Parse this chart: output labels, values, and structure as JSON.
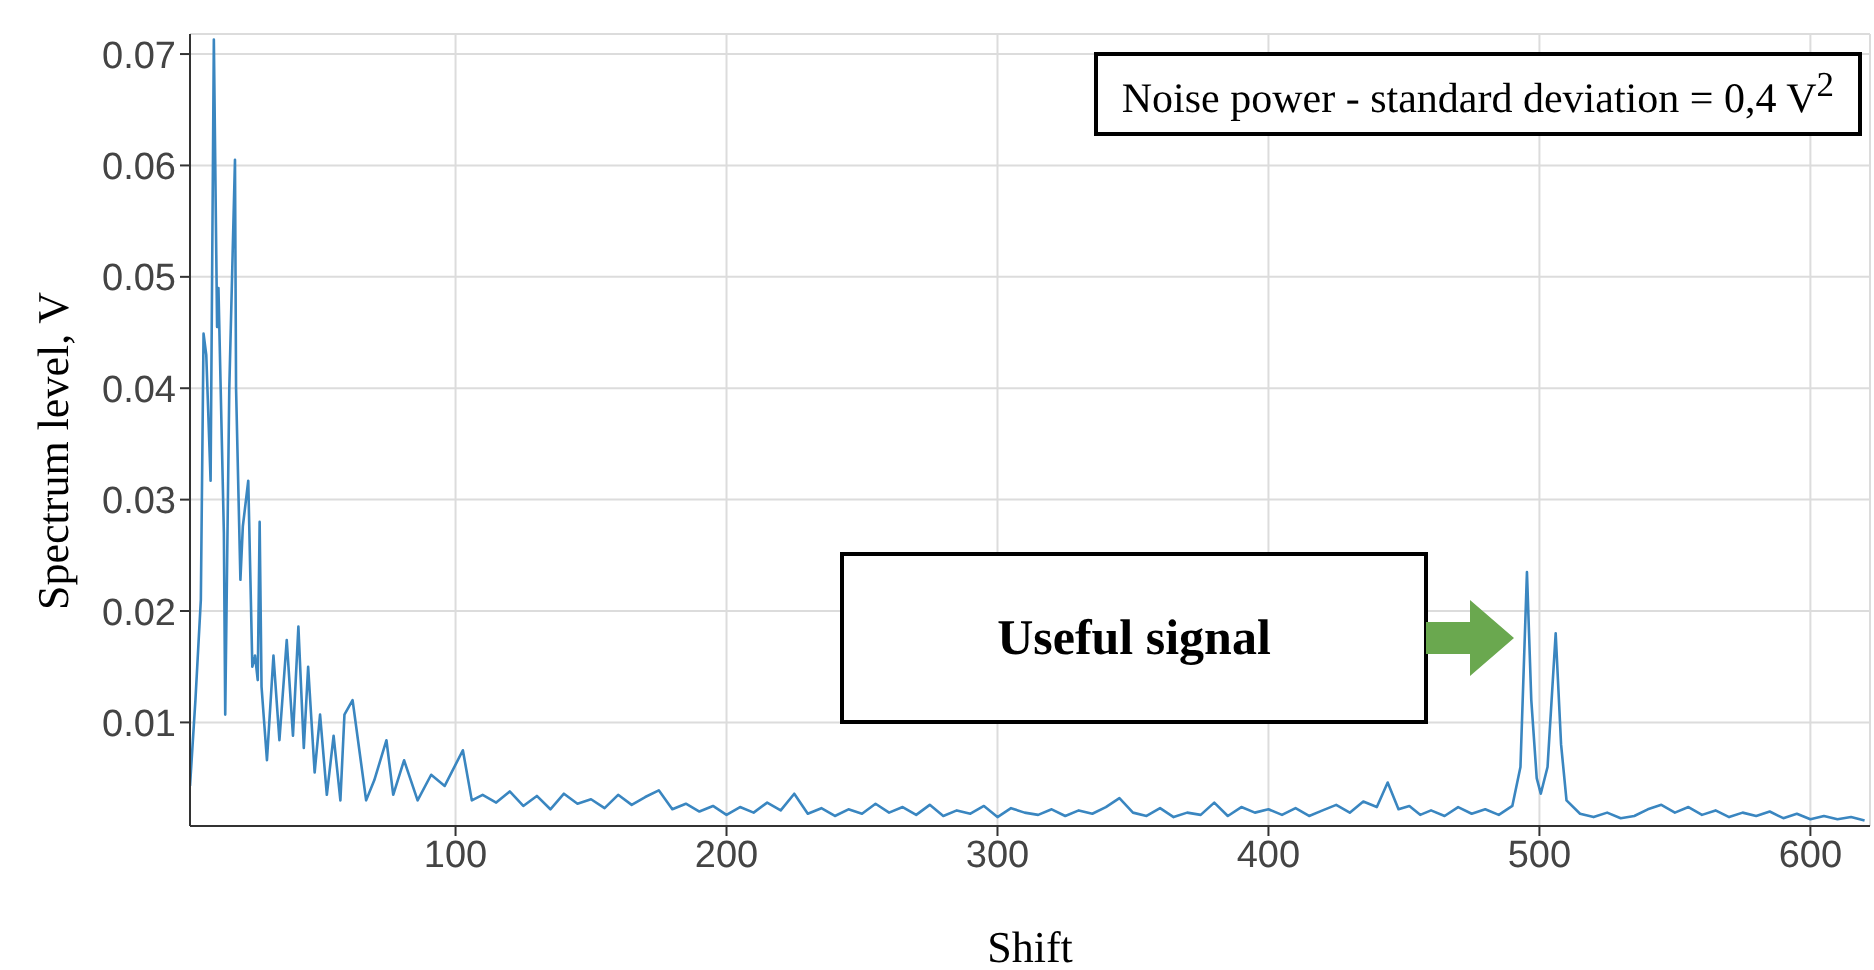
{
  "chart_data": {
    "type": "line",
    "xlabel": "Shift",
    "ylabel": "Spectrum level, V",
    "x": [
      2,
      4,
      6,
      7,
      8,
      9.6,
      10.8,
      12,
      12.5,
      14.5,
      15,
      16.5,
      18.6,
      19,
      20.6,
      21.5,
      23.5,
      25,
      26,
      27,
      27.7,
      28.4,
      30.4,
      32.8,
      35,
      37.7,
      40,
      42,
      44,
      45.6,
      48,
      50,
      52.5,
      55,
      57.5,
      59,
      62,
      65,
      67,
      70,
      74.5,
      77,
      81,
      86,
      91,
      96,
      102.7,
      106,
      110,
      115,
      120,
      125,
      130,
      135,
      140,
      145,
      150,
      155,
      160,
      165,
      170,
      175,
      180,
      185,
      190,
      195,
      200,
      205,
      210,
      215,
      220,
      225,
      230,
      235,
      240,
      245,
      250,
      255,
      260,
      265,
      270,
      275,
      280,
      285,
      290,
      295,
      300,
      305,
      310,
      315,
      320,
      325,
      330,
      335,
      340,
      345,
      350,
      355,
      360,
      365,
      370,
      375,
      380,
      385,
      390,
      395,
      400,
      405,
      410,
      415,
      420,
      425,
      430,
      435,
      440,
      444,
      448,
      452,
      456,
      460,
      465,
      470,
      475,
      480,
      485,
      490,
      493,
      495.4,
      497,
      499,
      500.5,
      503,
      506,
      508,
      510,
      515,
      520,
      525,
      530,
      535,
      540,
      545,
      550,
      555,
      560,
      565,
      570,
      575,
      580,
      585,
      590,
      595,
      600,
      605,
      610,
      615,
      620
    ],
    "series": [
      {
        "color": "#3a86c0",
        "values": [
          0.0043,
          0.012,
          0.021,
          0.0449,
          0.043,
          0.0317,
          0.0713,
          0.0455,
          0.049,
          0.027,
          0.0107,
          0.04,
          0.0605,
          0.04,
          0.0228,
          0.0276,
          0.0317,
          0.015,
          0.016,
          0.0138,
          0.028,
          0.0132,
          0.0066,
          0.016,
          0.0084,
          0.0174,
          0.0088,
          0.0186,
          0.0077,
          0.015,
          0.0055,
          0.0107,
          0.0035,
          0.0088,
          0.003,
          0.0107,
          0.012,
          0.0066,
          0.003,
          0.0048,
          0.0084,
          0.0035,
          0.0066,
          0.003,
          0.0053,
          0.0043,
          0.0075,
          0.003,
          0.0035,
          0.0028,
          0.0038,
          0.0025,
          0.0034,
          0.0022,
          0.0036,
          0.0027,
          0.0031,
          0.0023,
          0.0035,
          0.0026,
          0.0033,
          0.0039,
          0.0022,
          0.0027,
          0.002,
          0.0025,
          0.0017,
          0.0024,
          0.0019,
          0.0028,
          0.0021,
          0.0036,
          0.0018,
          0.0023,
          0.0016,
          0.0022,
          0.0018,
          0.0027,
          0.0019,
          0.0024,
          0.0017,
          0.0026,
          0.0016,
          0.0021,
          0.0018,
          0.0025,
          0.0015,
          0.0023,
          0.0019,
          0.0017,
          0.0022,
          0.0016,
          0.0021,
          0.0018,
          0.0024,
          0.0032,
          0.0019,
          0.0016,
          0.0023,
          0.0015,
          0.0019,
          0.0017,
          0.0028,
          0.0016,
          0.0024,
          0.0019,
          0.0022,
          0.0017,
          0.0023,
          0.0016,
          0.0021,
          0.0026,
          0.0019,
          0.0029,
          0.0024,
          0.0046,
          0.0022,
          0.0025,
          0.0017,
          0.0021,
          0.0016,
          0.0024,
          0.0018,
          0.0022,
          0.0017,
          0.0025,
          0.006,
          0.0235,
          0.012,
          0.005,
          0.0036,
          0.006,
          0.018,
          0.008,
          0.003,
          0.0018,
          0.0015,
          0.0019,
          0.0014,
          0.0016,
          0.0022,
          0.0026,
          0.0019,
          0.0024,
          0.0017,
          0.0021,
          0.0015,
          0.0019,
          0.0016,
          0.002,
          0.0014,
          0.0018,
          0.0013,
          0.0016,
          0.0013,
          0.0015,
          0.0012
        ]
      }
    ],
    "xlim": [
      2,
      622
    ],
    "ylim": [
      0.0007,
      0.0718
    ],
    "xticks": [
      100,
      200,
      300,
      400,
      500,
      600
    ],
    "yticks": [
      0.01,
      0.02,
      0.03,
      0.04,
      0.05,
      0.06,
      0.07
    ],
    "grid": true,
    "marker": "none",
    "line_style": "solid",
    "annotations": [
      "Noise power - standard deviation = 0,4 V$^{2}$",
      "Useful signal"
    ]
  }
}
